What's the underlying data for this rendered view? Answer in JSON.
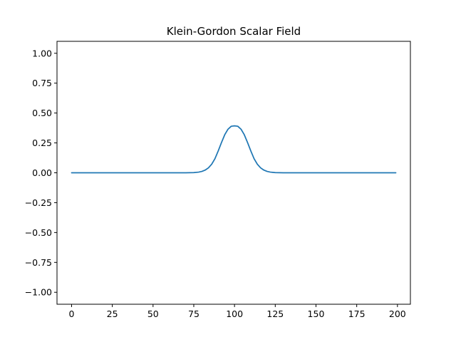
{
  "chart_data": {
    "type": "line",
    "title": "Klein-Gordon Scalar Field",
    "xlabel": "",
    "ylabel": "",
    "xlim": [
      -8.95,
      207.95
    ],
    "ylim": [
      -1.1,
      1.1
    ],
    "xticks": [
      0,
      25,
      50,
      75,
      100,
      125,
      150,
      175,
      200
    ],
    "yticks": [
      -1.0,
      -0.75,
      -0.5,
      -0.25,
      0.0,
      0.25,
      0.5,
      0.75,
      1.0
    ],
    "ytick_labels": [
      "−1.00",
      "−0.75",
      "−0.50",
      "−0.25",
      "0.00",
      "0.25",
      "0.50",
      "0.75",
      "1.00"
    ],
    "grid": false,
    "legend": "none",
    "series": [
      {
        "color": "#1f77b4",
        "x": [
          0,
          5,
          10,
          15,
          20,
          25,
          30,
          35,
          40,
          45,
          50,
          55,
          60,
          65,
          70,
          75,
          78,
          80,
          82,
          84,
          86,
          88,
          90,
          92,
          94,
          96,
          98,
          100,
          102,
          104,
          106,
          108,
          110,
          112,
          114,
          116,
          118,
          120,
          122,
          125,
          130,
          135,
          140,
          145,
          150,
          155,
          160,
          165,
          170,
          175,
          180,
          185,
          190,
          195,
          199
        ],
        "y": [
          0,
          0,
          0,
          0,
          0,
          0,
          0,
          0,
          0,
          0,
          0,
          0,
          0,
          0,
          0.0001,
          0.0017,
          0.0056,
          0.0115,
          0.0224,
          0.0413,
          0.072,
          0.1182,
          0.1828,
          0.2532,
          0.3184,
          0.3645,
          0.3894,
          0.3929,
          0.3894,
          0.3645,
          0.3184,
          0.2532,
          0.1828,
          0.1182,
          0.072,
          0.0413,
          0.0224,
          0.0115,
          0.0056,
          0.0017,
          0.0001,
          0,
          0,
          0,
          0,
          0,
          0,
          0,
          0,
          0,
          0,
          0,
          0,
          0,
          0
        ]
      }
    ]
  }
}
